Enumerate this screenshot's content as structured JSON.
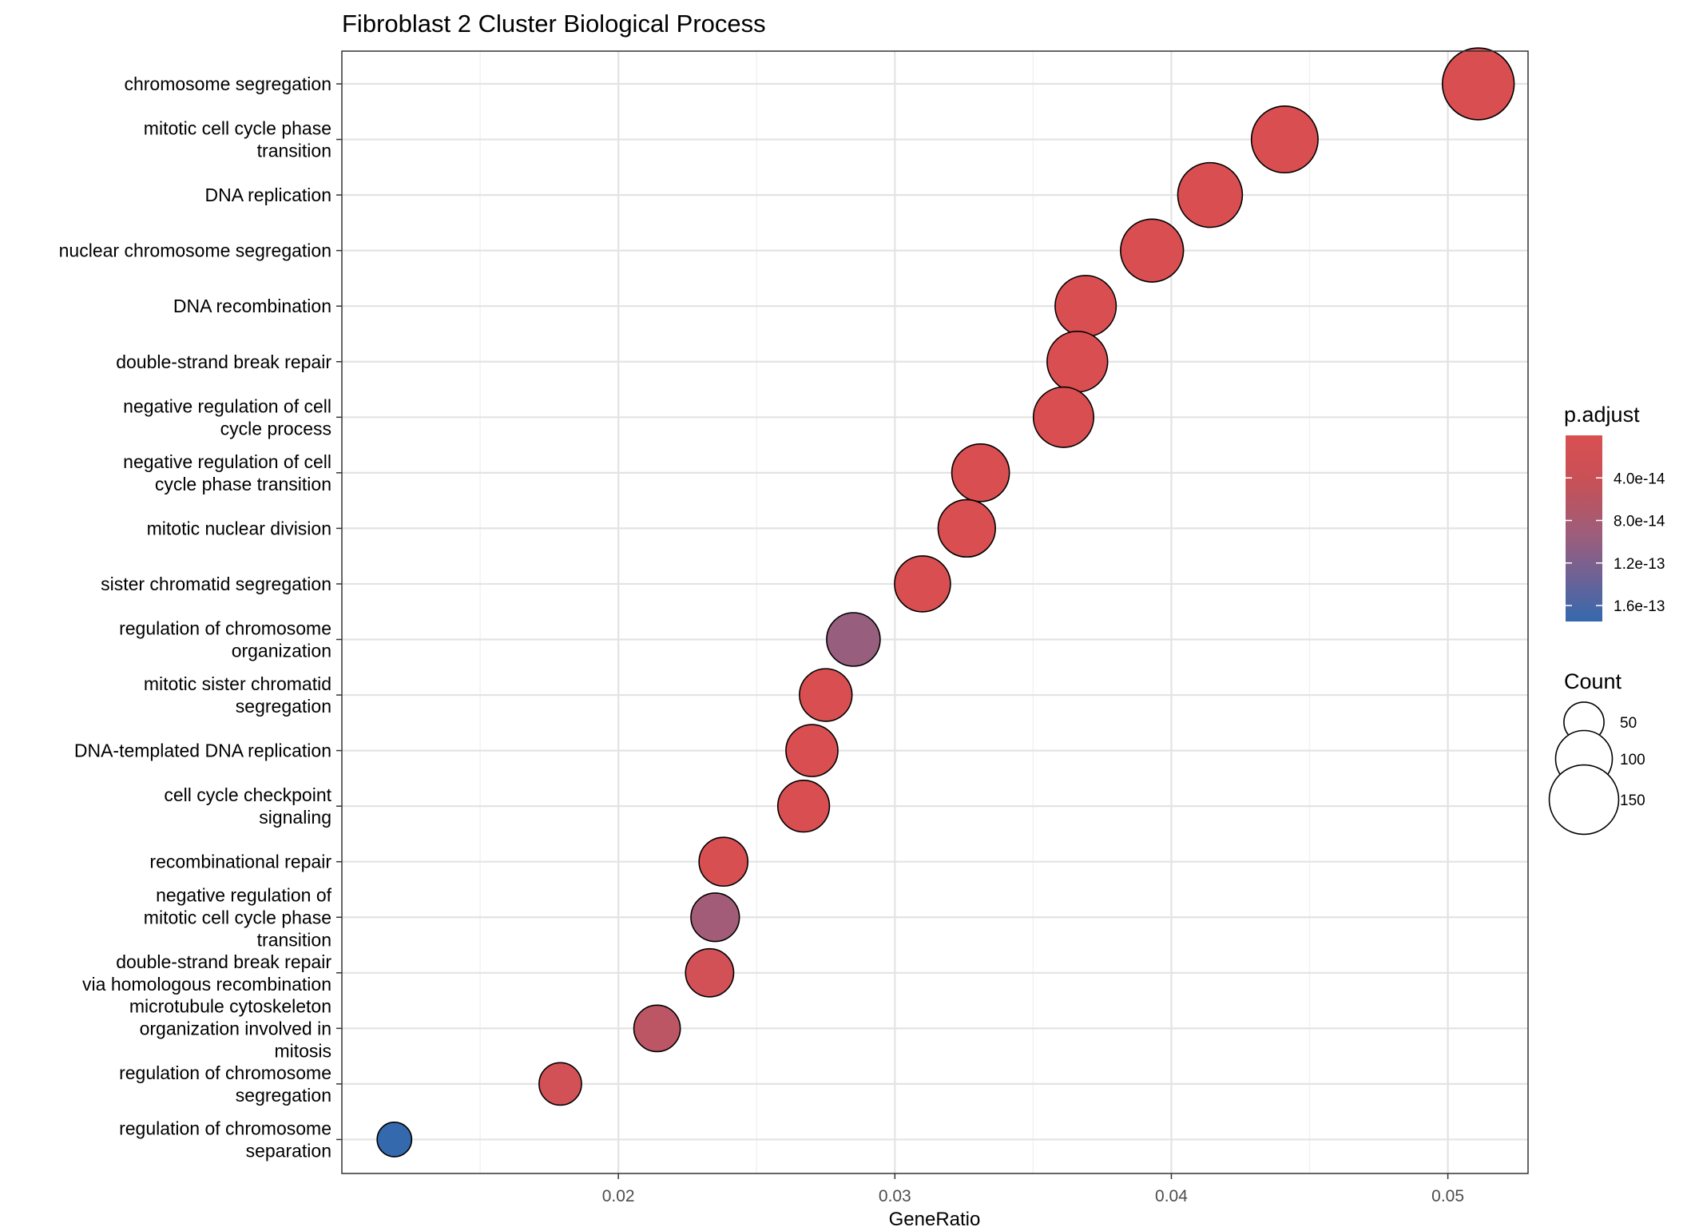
{
  "chart_data": {
    "type": "scatter",
    "title": "Fibroblast 2 Cluster Biological Process",
    "xlabel": "GeneRatio",
    "ylabel": "",
    "xlim": [
      0.01,
      0.0529
    ],
    "x_ticks": [
      "0.02",
      "0.03",
      "0.04",
      "0.05"
    ],
    "x_tick_values": [
      0.02,
      0.03,
      0.04,
      0.05
    ],
    "grid": true,
    "legend_position": "right",
    "categories": [
      [
        "chromosome segregation"
      ],
      [
        "mitotic cell cycle phase",
        "transition"
      ],
      [
        "DNA replication"
      ],
      [
        "nuclear chromosome segregation"
      ],
      [
        "DNA recombination"
      ],
      [
        "double-strand break repair"
      ],
      [
        "negative regulation of cell",
        "cycle process"
      ],
      [
        "negative regulation of cell",
        "cycle phase transition"
      ],
      [
        "mitotic nuclear division"
      ],
      [
        "sister chromatid segregation"
      ],
      [
        "regulation of chromosome",
        "organization"
      ],
      [
        "mitotic sister chromatid",
        "segregation"
      ],
      [
        "DNA-templated DNA replication"
      ],
      [
        "cell cycle checkpoint",
        "signaling"
      ],
      [
        "recombinational repair"
      ],
      [
        "negative regulation of",
        "mitotic cell cycle phase",
        "transition"
      ],
      [
        "double-strand break repair",
        "via homologous recombination"
      ],
      [
        "microtubule cytoskeleton",
        "organization involved in",
        "mitosis"
      ],
      [
        "regulation of chromosome",
        "segregation"
      ],
      [
        "regulation of chromosome",
        "separation"
      ]
    ],
    "points": [
      {
        "x": 0.0511,
        "count": 160,
        "p_adjust": 1e-30
      },
      {
        "x": 0.0441,
        "count": 138,
        "p_adjust": 1e-30
      },
      {
        "x": 0.0414,
        "count": 130,
        "p_adjust": 1e-30
      },
      {
        "x": 0.0393,
        "count": 123,
        "p_adjust": 1e-30
      },
      {
        "x": 0.0369,
        "count": 116,
        "p_adjust": 1e-25
      },
      {
        "x": 0.0366,
        "count": 114,
        "p_adjust": 1e-25
      },
      {
        "x": 0.0361,
        "count": 113,
        "p_adjust": 1e-24
      },
      {
        "x": 0.0331,
        "count": 103,
        "p_adjust": 1e-20
      },
      {
        "x": 0.0326,
        "count": 102,
        "p_adjust": 1e-20
      },
      {
        "x": 0.031,
        "count": 97,
        "p_adjust": 1e-18
      },
      {
        "x": 0.0285,
        "count": 89,
        "p_adjust": 9e-14
      },
      {
        "x": 0.0275,
        "count": 86,
        "p_adjust": 1e-16
      },
      {
        "x": 0.027,
        "count": 84,
        "p_adjust": 1e-16
      },
      {
        "x": 0.0267,
        "count": 83,
        "p_adjust": 1e-16
      },
      {
        "x": 0.0238,
        "count": 74,
        "p_adjust": 1e-15
      },
      {
        "x": 0.0235,
        "count": 73,
        "p_adjust": 7.5e-14
      },
      {
        "x": 0.0233,
        "count": 72,
        "p_adjust": 1e-14
      },
      {
        "x": 0.0214,
        "count": 67,
        "p_adjust": 4e-14
      },
      {
        "x": 0.0179,
        "count": 56,
        "p_adjust": 1e-14
      },
      {
        "x": 0.0119,
        "count": 37,
        "p_adjust": 1.75e-13
      }
    ],
    "color_legend": {
      "title": "p.adjust",
      "low_color": "#d94f51",
      "mid_color": "#9a5e7d",
      "high_color": "#3469ad",
      "range": [
        0,
        1.75e-13
      ],
      "tick_labels": [
        "4.0e-14",
        "8.0e-14",
        "1.2e-13",
        "1.6e-13"
      ],
      "tick_values": [
        4e-14,
        8e-14,
        1.2e-13,
        1.6e-13
      ]
    },
    "size_legend": {
      "title": "Count",
      "labels": [
        "50",
        "100",
        "150"
      ],
      "values": [
        50,
        100,
        150
      ]
    }
  }
}
